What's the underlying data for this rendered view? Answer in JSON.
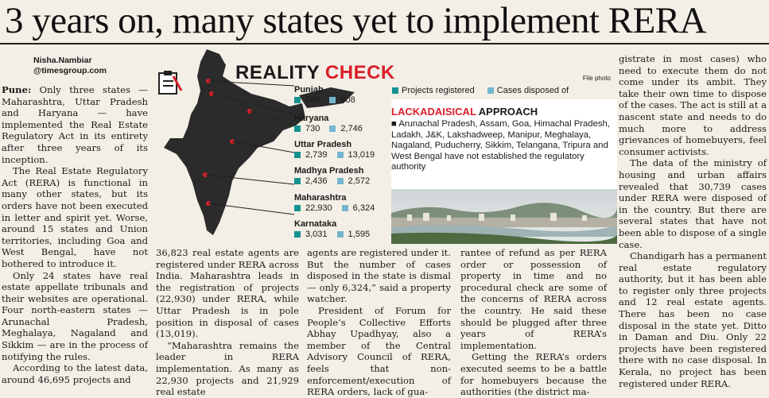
{
  "headline": "3 years on, many states yet to implement RERA",
  "byline": {
    "name": "Nisha.Nambiar",
    "handle": "@timesgroup.com"
  },
  "graphic": {
    "title_black": "REALITY",
    "title_red": "CHECK",
    "file_photo": "File photo",
    "legend": {
      "registered": "Projects registered",
      "disposed": "Cases disposed of"
    },
    "colors": {
      "registered": "#14928f",
      "disposed": "#74b5cf",
      "accent": "#d8202a",
      "map": "#2b2b2b"
    },
    "states": [
      {
        "name": "Punjab",
        "registered": "789",
        "disposed": "608"
      },
      {
        "name": "Haryana",
        "registered": "730",
        "disposed": "2,746"
      },
      {
        "name": "Uttar Pradesh",
        "registered": "2,739",
        "disposed": "13,019"
      },
      {
        "name": "Madhya Pradesh",
        "registered": "2,436",
        "disposed": "2,572"
      },
      {
        "name": "Maharashtra",
        "registered": "22,930",
        "disposed": "6,324"
      },
      {
        "name": "Karnataka",
        "registered": "3,031",
        "disposed": "1,595"
      }
    ],
    "lackadaisical": {
      "title_red": "LACKADAISICAL",
      "title_black": "APPROACH",
      "text": "■ Arunachal Pradesh, Assam, Goa, Himachal Pradesh, Ladakh, J&K, Lakshadweep, Manipur, Meghalaya, Nagaland, Puducherry, Sikkim, Telangana, Tripura and West Bengal have not established the regulatory authority"
    }
  },
  "col1": {
    "dateline": "Pune:",
    "p1": " Only three states — Maharashtra, Uttar Pradesh and Haryana — have implemented the Real Estate Regulatory Act in its entirety after three years of its inception.",
    "p2": "The Real Estate Regulatory Act (RERA) is functional in many other states, but its orders have not been executed in letter and spirit yet. Worse, around 15 states and Union territories, including Goa and West Bengal, have not bothered to introduce it.",
    "p3": "Only 24 states have real estate appellate tribunals and their websites are operational. Four north-eastern states — Arunachal Pradesh, Meghalaya, Nagaland and Sikkim — are in the process of notifying the rules.",
    "p4": "According to the latest data, around 46,695 projects and"
  },
  "col2": {
    "p1": "36,823 real estate agents are registered under RERA across India. Maharashtra leads in the registration of projects (22,930) under RERA, while Uttar Pradesh is in pole position in disposal of cases (13,019).",
    "p2": "“Maharashtra remains the leader in RERA implementation. As many as 22,930 projects and 21,929 real estate"
  },
  "col3": {
    "p1": "agents are registered under it. But the number of cases disposed in the state is dismal — only 6,324,” said a property watcher.",
    "p2": "President of Forum for People’s Collective Efforts Abhay Upadhyay, also a member of the Central Advisory Council of RERA, feels that non-enforcement/execution of RERA orders, lack of gua-"
  },
  "col4": {
    "p1": "rantee of refund as per RERA order or possession of property in time and no procedural check are some of the concerns of RERA across the country. He said these should be plugged after three years of RERA’s implementation.",
    "p2": "Getting the RERA’s orders executed seems to be a battle for homebuyers because the authorities (the district ma-"
  },
  "col5": {
    "p1": "gistrate in most cases) who need to execute them do not come under its ambit. They take their own time to dispose of the cases. The act is still at a nascent state and needs to do much more to address grievances of homebuyers, feel consumer activists.",
    "p2": "The data of the ministry of housing and urban affairs revealed that 30,739 cases under RERA were disposed of in the country. But there are several states that have not been able to dispose of a single case.",
    "p3": "Chandigarh has a permanent real estate regulatory authority, but it has been able to register only three projects and 12 real estate agents. There has been no case disposal in the state yet. Ditto in Daman and Diu. Only 22 projects have been registered there with no case disposal. In Kerala, no project has been registered under RERA."
  }
}
